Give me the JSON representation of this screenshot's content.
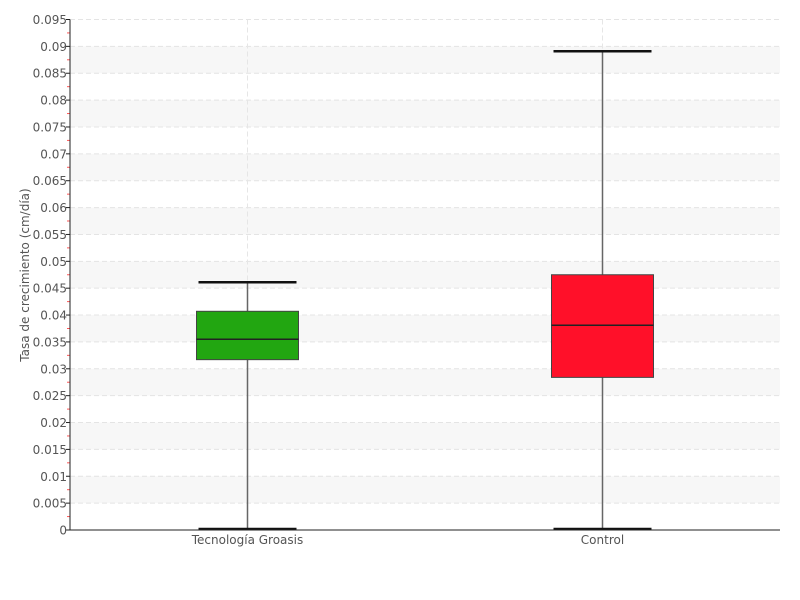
{
  "chart_data": {
    "type": "box",
    "title": "",
    "xlabel": "",
    "ylabel": "Tasa de crecimiento (cm/día)",
    "ylim": [
      0,
      0.095
    ],
    "ytick_step": 0.005,
    "yticks": [
      "0",
      "0.005",
      "0.01",
      "0.015",
      "0.02",
      "0.025",
      "0.03",
      "0.035",
      "0.04",
      "0.045",
      "0.05",
      "0.055",
      "0.06",
      "0.065",
      "0.07",
      "0.075",
      "0.08",
      "0.085",
      "0.09",
      "0.095"
    ],
    "grid": true,
    "categories": [
      "Tecnología Groasis",
      "Control"
    ],
    "boxes": [
      {
        "category": "Tecnología Groasis",
        "min": 0.0,
        "q1": 0.0317,
        "median": 0.0355,
        "q3": 0.0407,
        "max": 0.0461,
        "color": "#22a611"
      },
      {
        "category": "Control",
        "min": 0.0,
        "q1": 0.0284,
        "median": 0.0381,
        "q3": 0.0475,
        "max": 0.0891,
        "color": "#ff1029"
      }
    ]
  }
}
